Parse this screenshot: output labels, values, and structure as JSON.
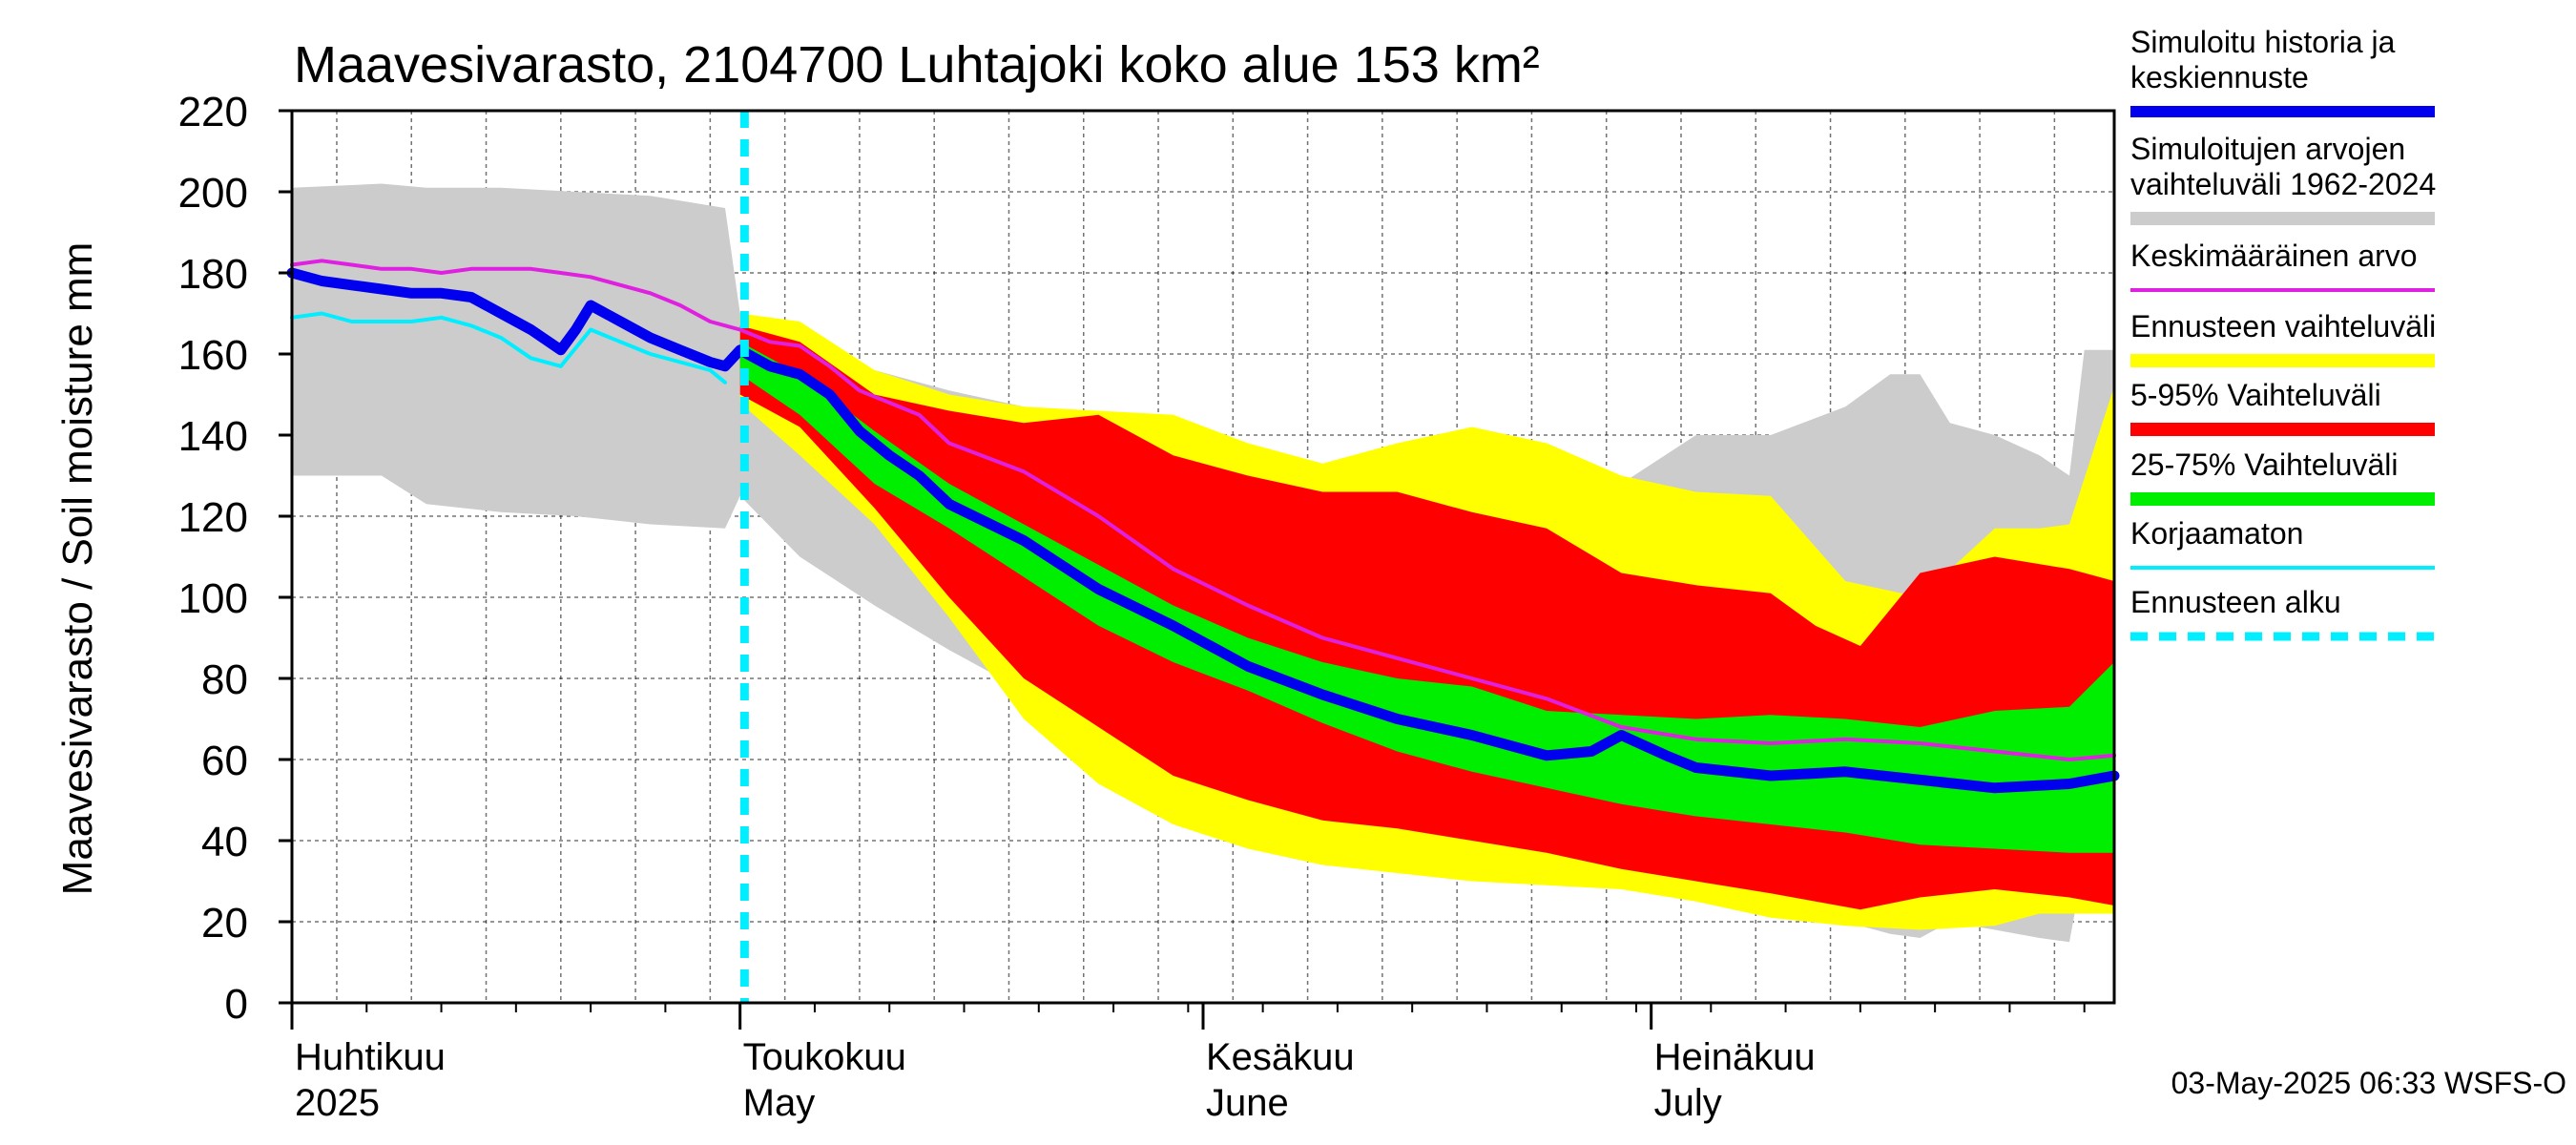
{
  "chart_data": {
    "type": "area",
    "title": "Maavesivarasto, 2104700 Luhtajoki koko alue 153 km²",
    "ylabel": "Maavesivarasto / Soil moisture   mm",
    "ylim": [
      0,
      220
    ],
    "yticks": [
      0,
      20,
      40,
      60,
      80,
      100,
      120,
      140,
      160,
      180,
      200,
      220
    ],
    "xlim": [
      1,
      123
    ],
    "x_unit": "day since 1 April 2025",
    "forecast_start_day": 31.3,
    "months": [
      {
        "line1": "Huhtikuu",
        "line2": "2025",
        "day": 1
      },
      {
        "line1": "Toukokuu",
        "line2": "May",
        "day": 31
      },
      {
        "line1": "Kesäkuu",
        "line2": "June",
        "day": 62
      },
      {
        "line1": "Heinäkuu",
        "line2": "July",
        "day": 92
      }
    ],
    "legend": [
      {
        "label": "Simuloitu historia ja\nkeskiennuste",
        "color": "#0000ee",
        "style": "thick"
      },
      {
        "label": "Simuloitujen arvojen\nvaihteluväli 1962-2024",
        "color": "#cccccc",
        "style": "band"
      },
      {
        "label": "Keskimääräinen arvo",
        "color": "#e020e0",
        "style": "thin"
      },
      {
        "label": "Ennusteen vaihteluväli",
        "color": "#ffff00",
        "style": "band"
      },
      {
        "label": "5-95% Vaihteluväli",
        "color": "#ff0000",
        "style": "band"
      },
      {
        "label": "25-75% Vaihteluväli",
        "color": "#00ee00",
        "style": "band"
      },
      {
        "label": "Korjaamaton",
        "color": "#00eeff",
        "style": "thin"
      },
      {
        "label": "Ennusteen alku",
        "color": "#00eeff",
        "style": "dashed"
      }
    ],
    "series": [
      {
        "name": "Simuloitujen arvojen vaihteluväli 1962-2024",
        "kind": "band",
        "color": "#cccccc",
        "x": [
          1,
          7,
          10,
          15,
          20,
          25,
          30,
          31,
          35,
          40,
          45,
          50,
          55,
          60,
          65,
          70,
          72,
          75,
          78,
          80,
          85,
          90,
          95,
          100,
          105,
          108,
          110,
          112,
          115,
          118,
          120,
          121,
          123
        ],
        "upper": [
          201,
          202,
          201,
          201,
          200,
          199,
          196,
          170,
          163,
          156,
          151,
          147,
          142,
          136,
          130,
          126,
          131,
          134,
          131,
          136,
          130,
          128,
          140,
          140,
          147,
          155,
          155,
          143,
          140,
          135,
          130,
          161,
          161
        ],
        "lower": [
          130,
          130,
          123,
          121,
          120,
          118,
          117,
          125,
          110,
          98,
          87,
          77,
          69,
          61,
          54,
          48,
          44,
          40,
          55,
          43,
          37,
          32,
          28,
          25,
          20,
          17,
          16,
          20,
          18,
          16,
          15,
          35,
          35
        ]
      },
      {
        "name": "Ennusteen vaihteluväli",
        "kind": "band",
        "color": "#ffff00",
        "x": [
          31,
          35,
          40,
          45,
          50,
          55,
          60,
          65,
          70,
          75,
          80,
          85,
          90,
          95,
          100,
          105,
          110,
          115,
          118,
          120,
          123
        ],
        "upper": [
          170,
          168,
          156,
          150,
          147,
          146,
          145,
          138,
          133,
          138,
          142,
          138,
          130,
          126,
          125,
          104,
          100,
          117,
          117,
          118,
          152
        ],
        "lower": [
          148,
          135,
          118,
          95,
          70,
          54,
          44,
          38,
          34,
          32,
          30,
          29,
          28,
          25,
          21,
          19,
          18,
          19,
          22,
          22,
          22
        ]
      },
      {
        "name": "5-95% Vaihteluväli",
        "kind": "band",
        "color": "#ff0000",
        "x": [
          31,
          35,
          40,
          45,
          50,
          55,
          60,
          65,
          70,
          75,
          80,
          85,
          90,
          95,
          100,
          103,
          106,
          110,
          115,
          120,
          123
        ],
        "upper": [
          167,
          163,
          150,
          146,
          143,
          145,
          135,
          130,
          126,
          126,
          121,
          117,
          106,
          103,
          101,
          93,
          88,
          106,
          110,
          107,
          104
        ],
        "lower": [
          150,
          142,
          122,
          100,
          80,
          68,
          56,
          50,
          45,
          43,
          40,
          37,
          33,
          30,
          27,
          25,
          23,
          26,
          28,
          26,
          24
        ]
      },
      {
        "name": "25-75% Vaihteluväli",
        "kind": "band",
        "color": "#00ee00",
        "x": [
          31,
          35,
          40,
          45,
          50,
          55,
          60,
          65,
          70,
          75,
          80,
          85,
          90,
          95,
          100,
          105,
          110,
          115,
          120,
          123
        ],
        "upper": [
          163,
          155,
          141,
          128,
          118,
          108,
          98,
          90,
          84,
          80,
          78,
          72,
          71,
          70,
          71,
          70,
          68,
          72,
          73,
          84
        ],
        "lower": [
          155,
          145,
          128,
          117,
          105,
          93,
          84,
          77,
          69,
          62,
          57,
          53,
          49,
          46,
          44,
          42,
          39,
          38,
          37,
          37
        ]
      },
      {
        "name": "Keskimääräinen arvo",
        "kind": "line",
        "color": "#e020e0",
        "x": [
          1,
          3,
          5,
          7,
          9,
          11,
          13,
          15,
          17,
          19,
          21,
          23,
          25,
          27,
          29,
          31,
          33,
          35,
          37,
          39,
          41,
          43,
          45,
          50,
          55,
          60,
          65,
          70,
          75,
          80,
          85,
          90,
          95,
          100,
          105,
          110,
          115,
          120,
          123
        ],
        "y": [
          182,
          183,
          182,
          181,
          181,
          180,
          181,
          181,
          181,
          180,
          179,
          177,
          175,
          172,
          168,
          166,
          163,
          162,
          157,
          151,
          148,
          145,
          138,
          131,
          120,
          107,
          98,
          90,
          85,
          80,
          75,
          68,
          65,
          64,
          65,
          64,
          62,
          60,
          61
        ]
      },
      {
        "name": "Korjaamaton",
        "kind": "line",
        "color": "#00eeff",
        "x": [
          1,
          3,
          5,
          7,
          9,
          11,
          13,
          15,
          17,
          19,
          21,
          23,
          25,
          27,
          29,
          30
        ],
        "y": [
          169,
          170,
          168,
          168,
          168,
          169,
          167,
          164,
          159,
          157,
          166,
          163,
          160,
          158,
          156,
          153
        ]
      },
      {
        "name": "Simuloitu historia ja keskiennuste",
        "kind": "line",
        "color": "#0000ee",
        "x": [
          1,
          3,
          5,
          7,
          9,
          11,
          13,
          15,
          17,
          19,
          20,
          21,
          23,
          25,
          27,
          29,
          30,
          31,
          33,
          35,
          37,
          39,
          41,
          43,
          45,
          50,
          55,
          60,
          65,
          70,
          75,
          80,
          85,
          88,
          90,
          93,
          95,
          100,
          105,
          110,
          115,
          120,
          123
        ],
        "y": [
          180,
          178,
          177,
          176,
          175,
          175,
          174,
          170,
          166,
          161,
          166,
          172,
          168,
          164,
          161,
          158,
          157,
          161,
          157,
          155,
          150,
          141,
          135,
          130,
          123,
          114,
          102,
          93,
          83,
          76,
          70,
          66,
          61,
          62,
          66,
          61,
          58,
          56,
          57,
          55,
          53,
          54,
          56
        ]
      }
    ]
  },
  "footer": {
    "timestamp": "03-May-2025 06:33 WSFS-O"
  }
}
